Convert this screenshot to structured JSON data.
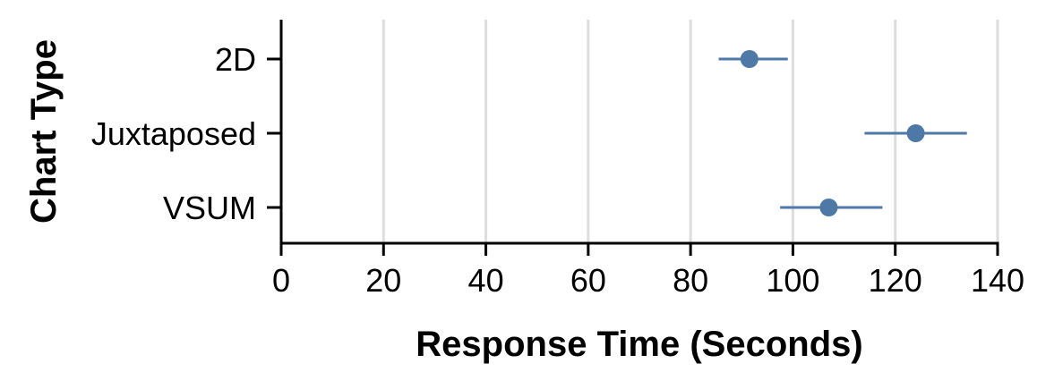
{
  "chart_data": {
    "type": "scatter",
    "subtype": "dot-with-error-bars",
    "xlabel": "Response Time (Seconds)",
    "ylabel": "Chart Type",
    "xlim": [
      0,
      140
    ],
    "x_ticks": [
      0,
      20,
      40,
      60,
      80,
      100,
      120,
      140
    ],
    "categories": [
      "2D",
      "Juxtaposed",
      "VSUM"
    ],
    "points": [
      {
        "category": "2D",
        "value": 91.5,
        "ci_low": 85.5,
        "ci_high": 99.0
      },
      {
        "category": "Juxtaposed",
        "value": 124.0,
        "ci_low": 114.0,
        "ci_high": 134.0
      },
      {
        "category": "VSUM",
        "value": 107.0,
        "ci_low": 97.5,
        "ci_high": 117.5
      }
    ],
    "grid": "vertical",
    "legend": "none"
  },
  "colors": {
    "mark": "#4e79a7",
    "grid": "#dddddd",
    "axis": "#000000"
  }
}
